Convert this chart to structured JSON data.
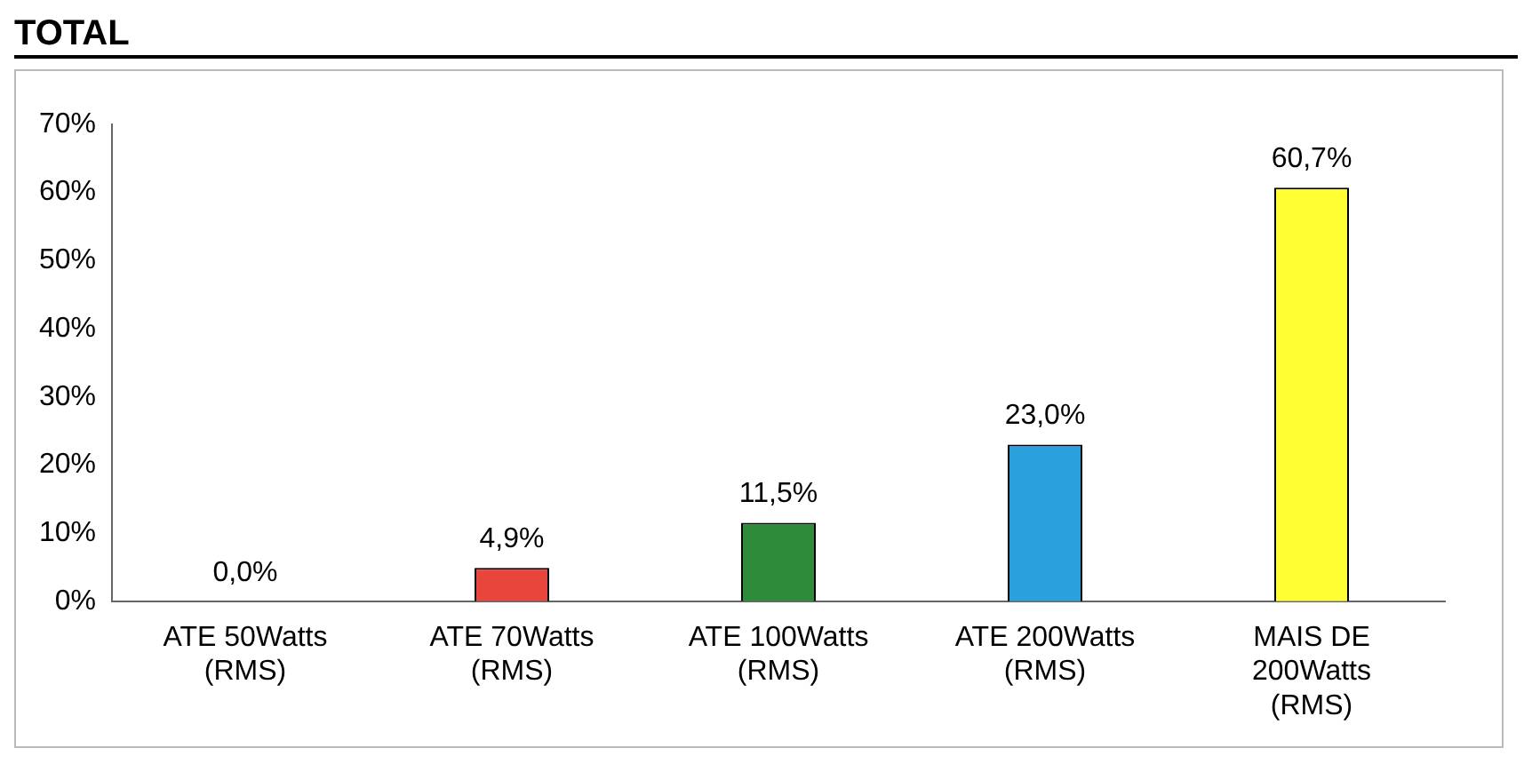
{
  "chart_data": {
    "type": "bar",
    "title": "TOTAL",
    "categories": [
      "ATE 50Watts (RMS)",
      "ATE 70Watts (RMS)",
      "ATE 100Watts (RMS)",
      "ATE 200Watts (RMS)",
      "MAIS DE 200Watts (RMS)"
    ],
    "values": [
      0,
      4.9,
      11.5,
      23.0,
      60.7
    ],
    "colors": [
      "#4f6fc0",
      "#e8453c",
      "#2e8b3a",
      "#2aa1dc",
      "#ffff33"
    ],
    "value_labels": [
      "0,0%",
      "4,9%",
      "11,5%",
      "23,0%",
      "60,7%"
    ],
    "ylim": [
      0,
      70
    ],
    "yticks": [
      {
        "value": 0,
        "label": "0%"
      },
      {
        "value": 10,
        "label": "10%"
      },
      {
        "value": 20,
        "label": "20%"
      },
      {
        "value": 30,
        "label": "30%"
      },
      {
        "value": 40,
        "label": "40%"
      },
      {
        "value": 50,
        "label": "50%"
      },
      {
        "value": 60,
        "label": "60%"
      },
      {
        "value": 70,
        "label": "70%"
      }
    ],
    "grid": false,
    "legend": false
  }
}
